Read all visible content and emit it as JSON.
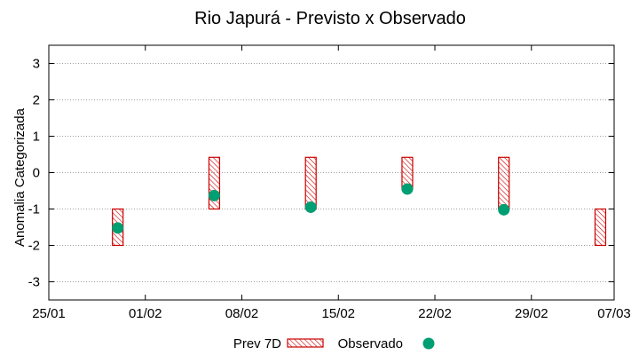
{
  "chart_data": {
    "type": "scatter",
    "title": "Rio Japurá - Previsto x Observado",
    "xlabel": "",
    "ylabel": "Anomalia Categorizada",
    "x_range_days": [
      0,
      41
    ],
    "ylim": [
      -3.5,
      3.5
    ],
    "x_ticks": [
      {
        "day": 0,
        "label": "25/01"
      },
      {
        "day": 7,
        "label": "01/02"
      },
      {
        "day": 14,
        "label": "08/02"
      },
      {
        "day": 21,
        "label": "15/02"
      },
      {
        "day": 28,
        "label": "22/02"
      },
      {
        "day": 35,
        "label": "29/02"
      },
      {
        "day": 41,
        "label": "07/03"
      }
    ],
    "y_ticks": [
      -3,
      -2,
      -1,
      0,
      1,
      2,
      3
    ],
    "grid": true,
    "legend_position": "bottom",
    "series": [
      {
        "name": "Prev 7D",
        "kind": "range-bar",
        "color": "#cc0000",
        "points": [
          {
            "day": 5,
            "low": -2.0,
            "high": -1.0
          },
          {
            "day": 12,
            "low": -1.0,
            "high": 0.42
          },
          {
            "day": 19,
            "low": -1.0,
            "high": 0.42
          },
          {
            "day": 26,
            "low": -0.45,
            "high": 0.42
          },
          {
            "day": 33,
            "low": -1.0,
            "high": 0.42
          },
          {
            "day": 40,
            "low": -2.0,
            "high": -1.0
          }
        ]
      },
      {
        "name": "Observado",
        "kind": "point",
        "color": "#009e73",
        "points": [
          {
            "day": 5,
            "value": -1.52
          },
          {
            "day": 12,
            "value": -0.63
          },
          {
            "day": 19,
            "value": -0.95
          },
          {
            "day": 26,
            "value": -0.45
          },
          {
            "day": 33,
            "value": -1.02
          }
        ]
      }
    ]
  }
}
